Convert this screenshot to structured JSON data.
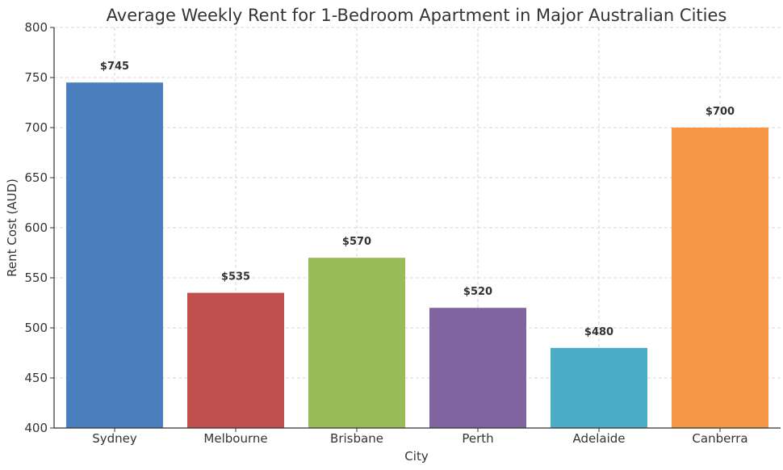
{
  "chart_data": {
    "type": "bar",
    "title": "Average Weekly Rent for 1-Bedroom Apartment in Major Australian Cities",
    "xlabel": "City",
    "ylabel": "Rent Cost (AUD)",
    "categories": [
      "Sydney",
      "Melbourne",
      "Brisbane",
      "Perth",
      "Adelaide",
      "Canberra"
    ],
    "values": [
      745,
      535,
      570,
      520,
      480,
      700
    ],
    "value_labels": [
      "$745",
      "$535",
      "$570",
      "$520",
      "$480",
      "$700"
    ],
    "colors": [
      "#4c7fbe",
      "#c0504d",
      "#9bbb59",
      "#8064a2",
      "#4bacc6",
      "#f79646"
    ],
    "ylim": [
      400,
      800
    ],
    "yticks": [
      400,
      450,
      500,
      550,
      600,
      650,
      700,
      750,
      800
    ],
    "grid": true
  }
}
